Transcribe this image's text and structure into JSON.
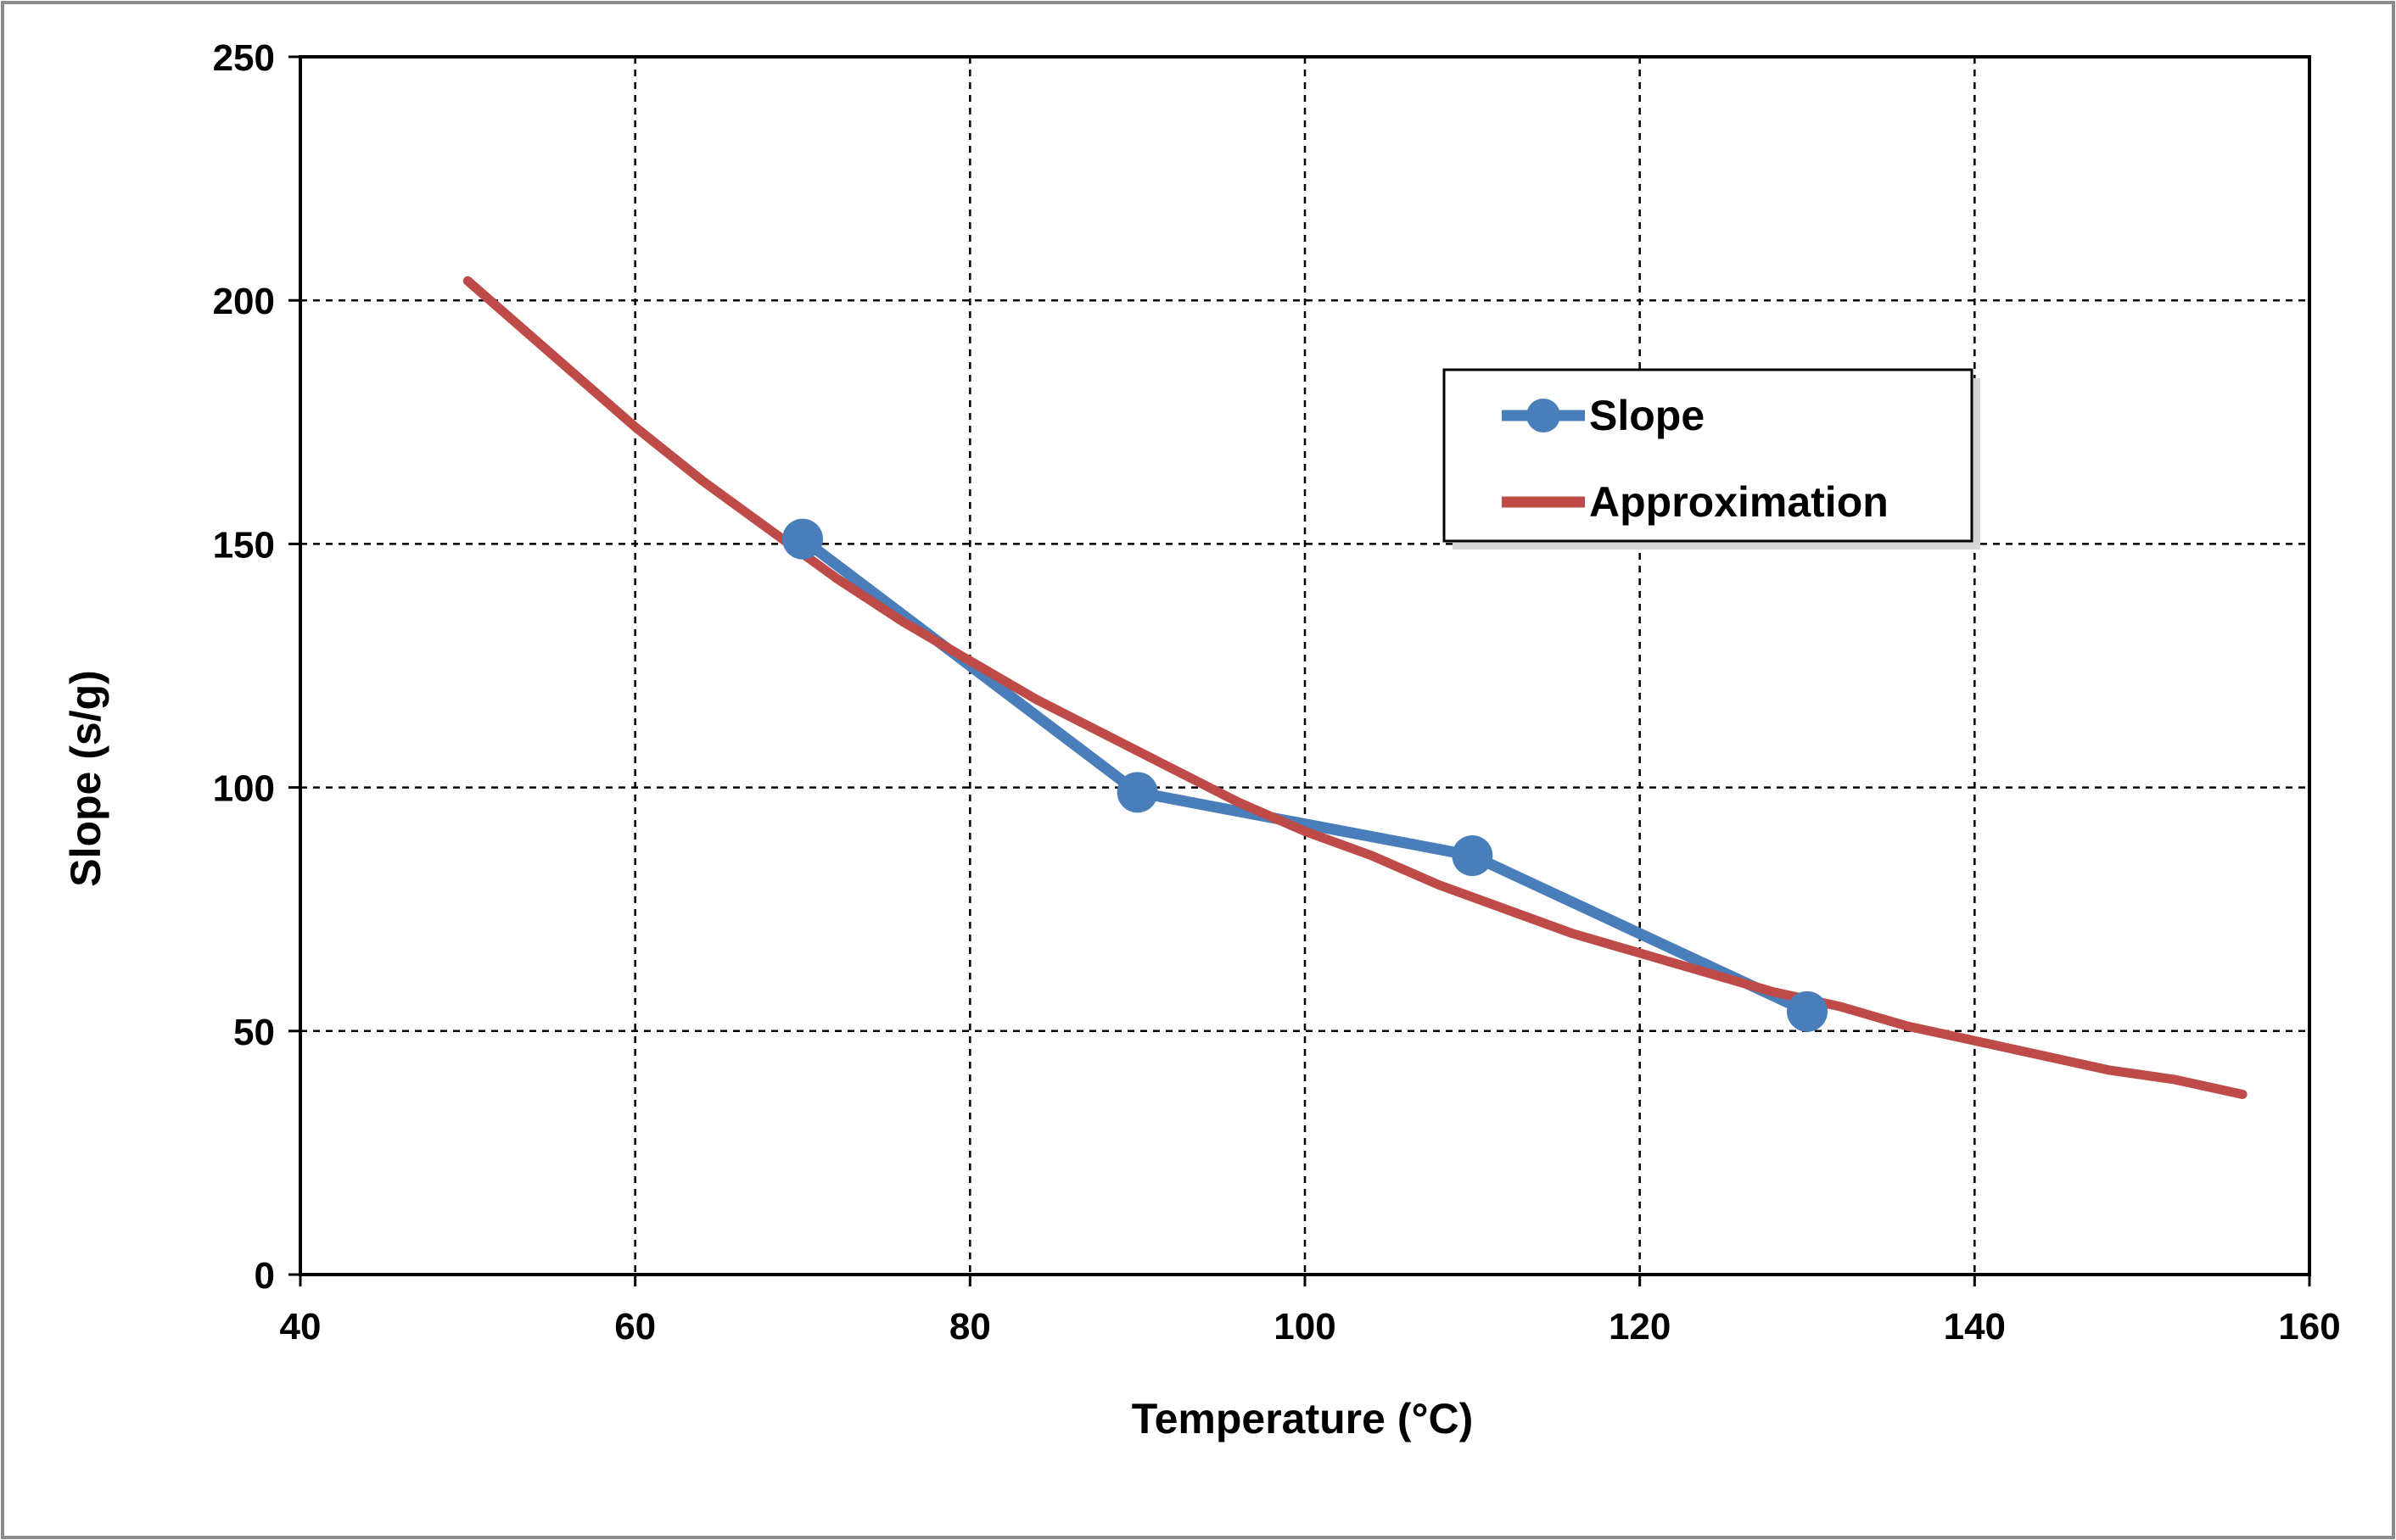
{
  "chart_data": {
    "type": "line",
    "xlabel": "Temperature (°C)",
    "ylabel": "Slope (s/g)",
    "xlim": [
      40,
      160
    ],
    "ylim": [
      0,
      250
    ],
    "xticks": [
      "40",
      "60",
      "80",
      "100",
      "120",
      "140",
      "160"
    ],
    "yticks": [
      "0",
      "50",
      "100",
      "150",
      "200",
      "250"
    ],
    "grid": true,
    "legend_position": "upper-right",
    "series": [
      {
        "name": "Slope",
        "color": "#4a7ebb",
        "markers": true,
        "x": [
          70,
          90,
          110,
          130
        ],
        "y": [
          151,
          99,
          86,
          54
        ]
      },
      {
        "name": "Approximation",
        "color": "#be4b48",
        "markers": false,
        "x": [
          50,
          56,
          60,
          64,
          68,
          72,
          76,
          80,
          84,
          88,
          92,
          96,
          100,
          104,
          108,
          112,
          116,
          120,
          124,
          128,
          132,
          136,
          140,
          144,
          148,
          152,
          156
        ],
        "y": [
          204,
          186,
          174,
          163,
          153,
          143,
          134,
          126,
          118,
          111,
          104,
          97,
          91,
          86,
          80,
          75,
          70,
          66,
          62,
          58,
          55,
          51,
          48,
          45,
          42,
          40,
          37
        ]
      }
    ]
  }
}
